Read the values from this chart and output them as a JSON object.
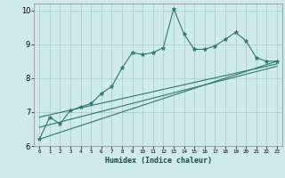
{
  "xlabel": "Humidex (Indice chaleur)",
  "ylabel": "",
  "xlim": [
    -0.5,
    23.5
  ],
  "ylim": [
    6,
    10.2
  ],
  "xticks": [
    0,
    1,
    2,
    3,
    4,
    5,
    6,
    7,
    8,
    9,
    10,
    11,
    12,
    13,
    14,
    15,
    16,
    17,
    18,
    19,
    20,
    21,
    22,
    23
  ],
  "yticks": [
    6,
    7,
    8,
    9,
    10
  ],
  "background_color": "#ceeaea",
  "grid_color": "#aecece",
  "line_color": "#2d7a6a",
  "main_line": {
    "x": [
      0,
      1,
      2,
      3,
      4,
      5,
      6,
      7,
      8,
      9,
      10,
      11,
      12,
      13,
      14,
      15,
      16,
      17,
      18,
      19,
      20,
      21,
      22,
      23
    ],
    "y": [
      6.2,
      6.85,
      6.65,
      7.05,
      7.15,
      7.25,
      7.55,
      7.75,
      8.3,
      8.75,
      8.7,
      8.75,
      8.9,
      10.05,
      9.3,
      8.85,
      8.85,
      8.95,
      9.15,
      9.35,
      9.1,
      8.6,
      8.5,
      8.5
    ]
  },
  "trend_lines": [
    {
      "x": [
        0,
        23
      ],
      "y": [
        6.2,
        8.5
      ]
    },
    {
      "x": [
        0,
        23
      ],
      "y": [
        6.55,
        8.35
      ]
    },
    {
      "x": [
        0,
        23
      ],
      "y": [
        6.85,
        8.42
      ]
    }
  ]
}
